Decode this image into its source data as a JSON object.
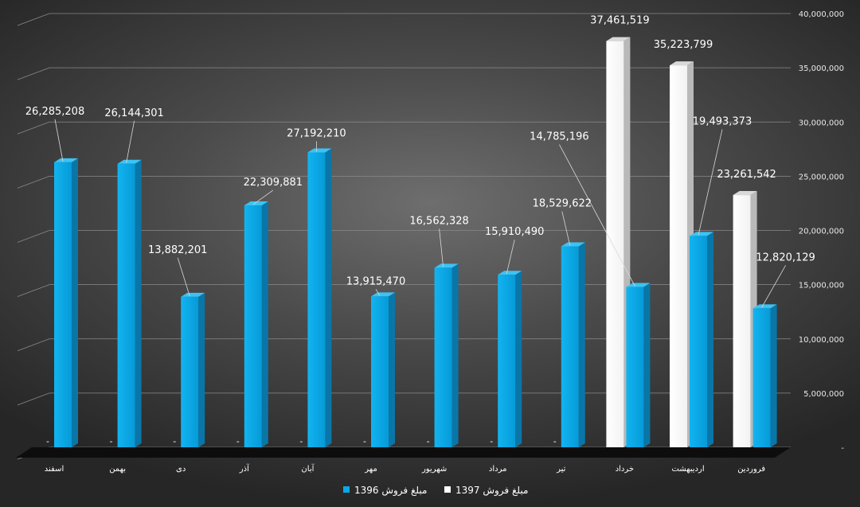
{
  "chart_data": {
    "type": "bar",
    "categories": [
      "اسفند",
      "بهمن",
      "دی",
      "آذر",
      "آبان",
      "مهر",
      "شهریور",
      "مرداد",
      "تیر",
      "خرداد",
      "اردیبهشت",
      "فروردین"
    ],
    "series": [
      {
        "name": "مبلغ فروش 1397",
        "color": "#ffffff",
        "values": [
          null,
          null,
          null,
          null,
          null,
          null,
          null,
          null,
          null,
          37461519,
          35223799,
          23261542
        ],
        "labels": [
          "-",
          "-",
          "-",
          "-",
          "-",
          "-",
          "-",
          "-",
          "-",
          "37,461,519",
          "35,223,799",
          "23,261,542"
        ]
      },
      {
        "name": "مبلغ فروش 1396",
        "color": "#0aa8e6",
        "values": [
          26285208,
          26144301,
          13882201,
          22309881,
          27192210,
          13915470,
          16562328,
          15910490,
          18529622,
          14785196,
          19493373,
          12820129
        ],
        "labels": [
          "26,285,208",
          "26,144,301",
          "13,882,201",
          "22,309,881",
          "27,192,210",
          "13,915,470",
          "16,562,328",
          "15,910,490",
          "18,529,622",
          "14,785,196",
          "19,493,373",
          "12,820,129"
        ]
      }
    ],
    "y_ticks": [
      "-",
      "5,000,000",
      "10,000,000",
      "15,000,000",
      "20,000,000",
      "25,000,000",
      "30,000,000",
      "35,000,000",
      "40,000,000"
    ],
    "ylim": [
      0,
      40000000
    ],
    "grid": true,
    "legend": "bottom",
    "title": "",
    "xlabel": "",
    "ylabel": ""
  }
}
